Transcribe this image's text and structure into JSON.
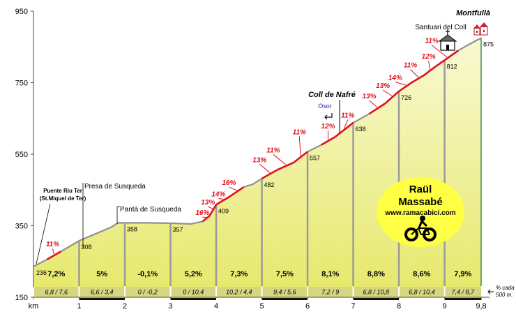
{
  "chart_data": {
    "type": "area",
    "ylim": [
      150,
      950
    ],
    "xlim": [
      0,
      9.8
    ],
    "y_ticks": [
      950,
      750,
      550,
      350,
      150
    ],
    "x_ticks": [
      {
        "v": 0,
        "label": "km"
      },
      {
        "v": 1,
        "label": "1"
      },
      {
        "v": 2,
        "label": "2"
      },
      {
        "v": 3,
        "label": "3"
      },
      {
        "v": 4,
        "label": "4"
      },
      {
        "v": 5,
        "label": "5"
      },
      {
        "v": 6,
        "label": "6"
      },
      {
        "v": 7,
        "label": "7"
      },
      {
        "v": 8,
        "label": "8"
      },
      {
        "v": 9,
        "label": "9"
      },
      {
        "v": 9.8,
        "label": "9,8"
      }
    ],
    "profile": [
      [
        0,
        236
      ],
      [
        0.3,
        256
      ],
      [
        0.6,
        278
      ],
      [
        1,
        308
      ],
      [
        1.35,
        327
      ],
      [
        1.7,
        346
      ],
      [
        1.85,
        358
      ],
      [
        2,
        358
      ],
      [
        2.5,
        358
      ],
      [
        3,
        357
      ],
      [
        3.45,
        355
      ],
      [
        3.7,
        362
      ],
      [
        3.85,
        377
      ],
      [
        4,
        409
      ],
      [
        4.3,
        432
      ],
      [
        4.6,
        458
      ],
      [
        4.8,
        466
      ],
      [
        5,
        482
      ],
      [
        5.35,
        507
      ],
      [
        5.7,
        527
      ],
      [
        6,
        557
      ],
      [
        6.3,
        576
      ],
      [
        6.6,
        598
      ],
      [
        7,
        638
      ],
      [
        7.35,
        663
      ],
      [
        7.7,
        692
      ],
      [
        8,
        726
      ],
      [
        8.3,
        752
      ],
      [
        8.55,
        771
      ],
      [
        8.8,
        795
      ],
      [
        9,
        812
      ],
      [
        9.3,
        840
      ],
      [
        9.55,
        858
      ],
      [
        9.8,
        875
      ]
    ],
    "km_markers": [
      {
        "km": 1,
        "alt": "308"
      },
      {
        "km": 2,
        "alt": "358"
      },
      {
        "km": 3,
        "alt": "357"
      },
      {
        "km": 4,
        "alt": "409"
      },
      {
        "km": 5,
        "alt": "482"
      },
      {
        "km": 6,
        "alt": "557"
      },
      {
        "km": 7,
        "alt": "638"
      },
      {
        "km": 8,
        "alt": "726"
      },
      {
        "km": 9,
        "alt": "812"
      },
      {
        "km": 9.8,
        "alt": "875"
      }
    ],
    "start_alt": "236",
    "segments": [
      {
        "start": 0,
        "end": 1,
        "gradient": "7,2%",
        "sub": "6,8  /  7,6"
      },
      {
        "start": 1,
        "end": 2,
        "gradient": "5%",
        "sub": "6,6  /  3,4"
      },
      {
        "start": 2,
        "end": 3,
        "gradient": "-0,1%",
        "sub": "0  /  -0,2"
      },
      {
        "start": 3,
        "end": 4,
        "gradient": "5,2%",
        "sub": "0  /  10,4"
      },
      {
        "start": 4,
        "end": 5,
        "gradient": "7,3%",
        "sub": "10,2  /  4,4"
      },
      {
        "start": 5,
        "end": 6,
        "gradient": "7,5%",
        "sub": "9,4  /  5,6"
      },
      {
        "start": 6,
        "end": 7,
        "gradient": "8,1%",
        "sub": "7,2  /  9"
      },
      {
        "start": 7,
        "end": 8,
        "gradient": "8,8%",
        "sub": "6,8  /  10,8"
      },
      {
        "start": 8,
        "end": 9,
        "gradient": "8,6%",
        "sub": "6,8  /  10,4"
      },
      {
        "start": 9,
        "end": 9.8,
        "gradient": "7,9%",
        "sub": "7,4  /  8,7"
      }
    ],
    "sub_note": [
      "% cada",
      "500 m."
    ],
    "steep_sections": [
      {
        "from": 0.3,
        "to": 0.6,
        "label": "11%",
        "lx": 0.42,
        "ly": 292
      },
      {
        "from": 3.7,
        "to": 3.85,
        "label": "16%",
        "lx": 3.7,
        "ly": 380
      },
      {
        "from": 3.85,
        "to": 4.0,
        "label": "13%",
        "lx": 3.82,
        "ly": 410
      },
      {
        "from": 4.0,
        "to": 4.3,
        "label": "14%",
        "lx": 4.05,
        "ly": 432
      },
      {
        "from": 4.3,
        "to": 4.6,
        "label": "16%",
        "lx": 4.28,
        "ly": 464
      },
      {
        "from": 5.0,
        "to": 5.35,
        "label": "13%",
        "lx": 4.95,
        "ly": 528
      },
      {
        "from": 5.35,
        "to": 5.7,
        "label": "11%",
        "lx": 5.25,
        "ly": 555
      },
      {
        "from": 5.7,
        "to": 6.0,
        "label": "11%",
        "lx": 5.82,
        "ly": 606
      },
      {
        "from": 6.3,
        "to": 6.6,
        "label": "12%",
        "lx": 6.45,
        "ly": 622
      },
      {
        "from": 6.6,
        "to": 7.0,
        "label": "11%",
        "lx": 6.88,
        "ly": 652
      },
      {
        "from": 7.35,
        "to": 7.7,
        "label": "13%",
        "lx": 7.35,
        "ly": 706
      },
      {
        "from": 7.7,
        "to": 8.0,
        "label": "13%",
        "lx": 7.65,
        "ly": 735
      },
      {
        "from": 8.0,
        "to": 8.3,
        "label": "14%",
        "lx": 7.92,
        "ly": 758
      },
      {
        "from": 8.3,
        "to": 8.55,
        "label": "11%",
        "lx": 8.25,
        "ly": 793
      },
      {
        "from": 8.55,
        "to": 8.8,
        "label": "12%",
        "lx": 8.65,
        "ly": 817
      },
      {
        "from": 8.8,
        "to": 9.3,
        "label": "11%",
        "lx": 8.72,
        "ly": 861
      }
    ]
  },
  "labels": {
    "start_line1": "Puente Riu Ter",
    "start_line2": "(St.Miquel de Ter)",
    "presa": "Presa de Susqueda",
    "panta": "Pantà de Susqueda",
    "coll": "Coll de Nafré",
    "osor": "Osor",
    "santuari": "Santuari del Coll",
    "montfulla": "Montfullà"
  },
  "brand": {
    "name1": "Raül",
    "name2": "Massabé",
    "url": "www.ramacabici.com"
  },
  "colors": {
    "fill_top": "#f8f8c4",
    "fill_bottom": "#e8eb6a",
    "line": "#8f8f8f",
    "steep": "#e0101a",
    "brand_bg": "#ffff44",
    "osor": "#2222cc"
  }
}
